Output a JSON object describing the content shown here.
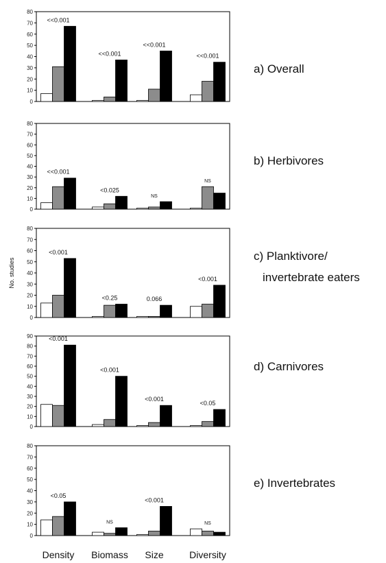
{
  "colors": {
    "white_bar": "#ffffff",
    "gray_bar": "#8c8c8c",
    "black_bar": "#000000",
    "axis": "#000000"
  },
  "y_axis_label": "No. studies",
  "categories": [
    "Density",
    "Biomass",
    "Size",
    "Diversity"
  ],
  "chart_data": [
    {
      "type": "bar",
      "title": "a) Overall",
      "ylim": [
        0,
        80
      ],
      "yticks": [
        0,
        10,
        20,
        30,
        40,
        50,
        60,
        70,
        80
      ],
      "categories": [
        "Density",
        "Biomass",
        "Size",
        "Diversity"
      ],
      "series": [
        {
          "values": [
            7,
            1,
            1,
            6
          ]
        },
        {
          "values": [
            31,
            4,
            11,
            18
          ]
        },
        {
          "values": [
            67,
            37,
            45,
            35
          ]
        }
      ],
      "annotations": [
        "<<0.001",
        "<<0.001",
        "<<0.001",
        "<<0.001"
      ],
      "grid": false
    },
    {
      "type": "bar",
      "title": "b) Herbivores",
      "ylim": [
        0,
        80
      ],
      "yticks": [
        0,
        10,
        20,
        30,
        40,
        50,
        60,
        70,
        80
      ],
      "categories": [
        "Density",
        "Biomass",
        "Size",
        "Diversity"
      ],
      "series": [
        {
          "values": [
            6,
            2,
            1,
            1
          ]
        },
        {
          "values": [
            21,
            5,
            2,
            21
          ]
        },
        {
          "values": [
            29,
            12,
            7,
            15
          ]
        }
      ],
      "annotations": [
        "<<0.001",
        "<0.025",
        "NS",
        "NS"
      ],
      "grid": false
    },
    {
      "type": "bar",
      "title": "c) Planktivore/ invertebrate eaters",
      "ylim": [
        0,
        80
      ],
      "yticks": [
        0,
        10,
        20,
        30,
        40,
        50,
        60,
        70,
        80
      ],
      "categories": [
        "Density",
        "Biomass",
        "Size",
        "Diversity"
      ],
      "series": [
        {
          "values": [
            13,
            1,
            1,
            10
          ]
        },
        {
          "values": [
            20,
            11,
            1,
            12
          ]
        },
        {
          "values": [
            53,
            12,
            11,
            29
          ]
        }
      ],
      "annotations": [
        "<0.001",
        "<0.25",
        "0.066",
        "<0.001"
      ],
      "grid": false
    },
    {
      "type": "bar",
      "title": "d) Carnivores",
      "ylim": [
        0,
        90
      ],
      "yticks": [
        0,
        10,
        20,
        30,
        40,
        50,
        60,
        70,
        80,
        90
      ],
      "categories": [
        "Density",
        "Biomass",
        "Size",
        "Diversity"
      ],
      "series": [
        {
          "values": [
            22,
            2,
            1,
            1
          ]
        },
        {
          "values": [
            21,
            7,
            4,
            5
          ]
        },
        {
          "values": [
            81,
            50,
            21,
            17
          ]
        }
      ],
      "annotations": [
        "<0.001",
        "<0.001",
        "<0.001",
        "<0.05"
      ],
      "grid": false
    },
    {
      "type": "bar",
      "title": "e) Invertebrates",
      "ylim": [
        0,
        80
      ],
      "yticks": [
        0,
        10,
        20,
        30,
        40,
        50,
        60,
        70,
        80
      ],
      "categories": [
        "Density",
        "Biomass",
        "Size",
        "Diversity"
      ],
      "series": [
        {
          "values": [
            14,
            3,
            1,
            6
          ]
        },
        {
          "values": [
            17,
            2,
            4,
            4
          ]
        },
        {
          "values": [
            30,
            7,
            26,
            3
          ]
        }
      ],
      "annotations": [
        "<0.05",
        "NS",
        "<0.001",
        "NS"
      ],
      "grid": false
    }
  ]
}
